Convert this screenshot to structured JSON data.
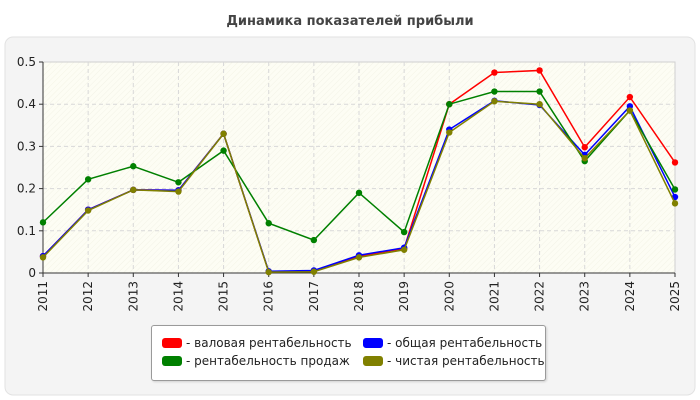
{
  "chart_data": {
    "type": "line",
    "title": "Динамика показателей прибыли",
    "xlabel": "",
    "ylabel": "",
    "x": [
      "2011",
      "2012",
      "2013",
      "2014",
      "2015",
      "2016",
      "2017",
      "2018",
      "2019",
      "2020",
      "2021",
      "2022",
      "2023",
      "2024",
      "2025"
    ],
    "ylim": [
      0,
      0.5
    ],
    "yticks": [
      "0",
      "0.1",
      "0.2",
      "0.3",
      "0.4",
      "0.5"
    ],
    "grid": true,
    "legend_position": "bottom",
    "series": [
      {
        "name": "- валовая рентабельность",
        "color": "#ff0000",
        "values": [
          0.04,
          0.15,
          0.197,
          0.196,
          0.33,
          0.003,
          0.005,
          0.04,
          0.058,
          0.4,
          0.475,
          0.48,
          0.298,
          0.417,
          0.262
        ]
      },
      {
        "name": "- общая рентабельность",
        "color": "#0000ff",
        "values": [
          0.04,
          0.15,
          0.197,
          0.196,
          0.33,
          0.004,
          0.006,
          0.042,
          0.06,
          0.34,
          0.408,
          0.398,
          0.28,
          0.395,
          0.18
        ]
      },
      {
        "name": "- рентабельность продаж",
        "color": "#008000",
        "values": [
          0.12,
          0.222,
          0.253,
          0.215,
          0.29,
          0.118,
          0.078,
          0.19,
          0.097,
          0.4,
          0.43,
          0.43,
          0.265,
          0.385,
          0.198
        ]
      },
      {
        "name": "- чистая рентабельность",
        "color": "#808000",
        "values": [
          0.037,
          0.148,
          0.197,
          0.193,
          0.33,
          0.002,
          0.003,
          0.037,
          0.055,
          0.333,
          0.407,
          0.4,
          0.272,
          0.385,
          0.165
        ]
      }
    ]
  }
}
